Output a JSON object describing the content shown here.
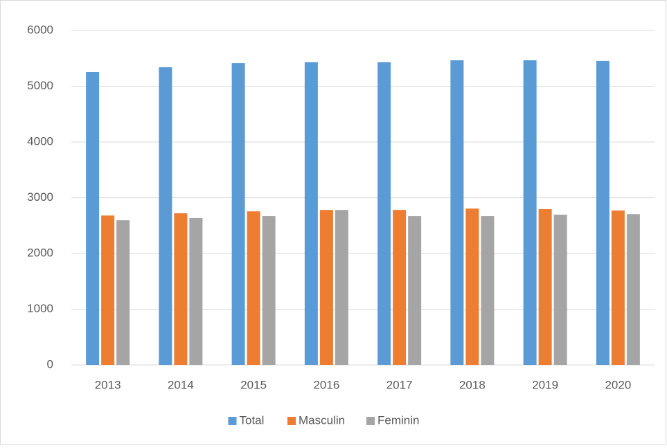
{
  "chart_data": {
    "type": "bar",
    "categories": [
      "2013",
      "2014",
      "2015",
      "2016",
      "2017",
      "2018",
      "2019",
      "2020"
    ],
    "series": [
      {
        "name": "Total",
        "color": "#5b9bd5",
        "values": [
          5255,
          5340,
          5415,
          5430,
          5430,
          5465,
          5465,
          5455
        ]
      },
      {
        "name": "Masculin",
        "color": "#ed7d31",
        "values": [
          2680,
          2720,
          2755,
          2780,
          2780,
          2805,
          2795,
          2770
        ]
      },
      {
        "name": "Feminin",
        "color": "#a5a5a5",
        "values": [
          2595,
          2635,
          2670,
          2780,
          2670,
          2670,
          2695,
          2705
        ]
      }
    ],
    "ylim": [
      0,
      6000
    ],
    "yticks": [
      0,
      1000,
      2000,
      3000,
      4000,
      5000,
      6000
    ],
    "grid": true,
    "legend": "bottom"
  }
}
